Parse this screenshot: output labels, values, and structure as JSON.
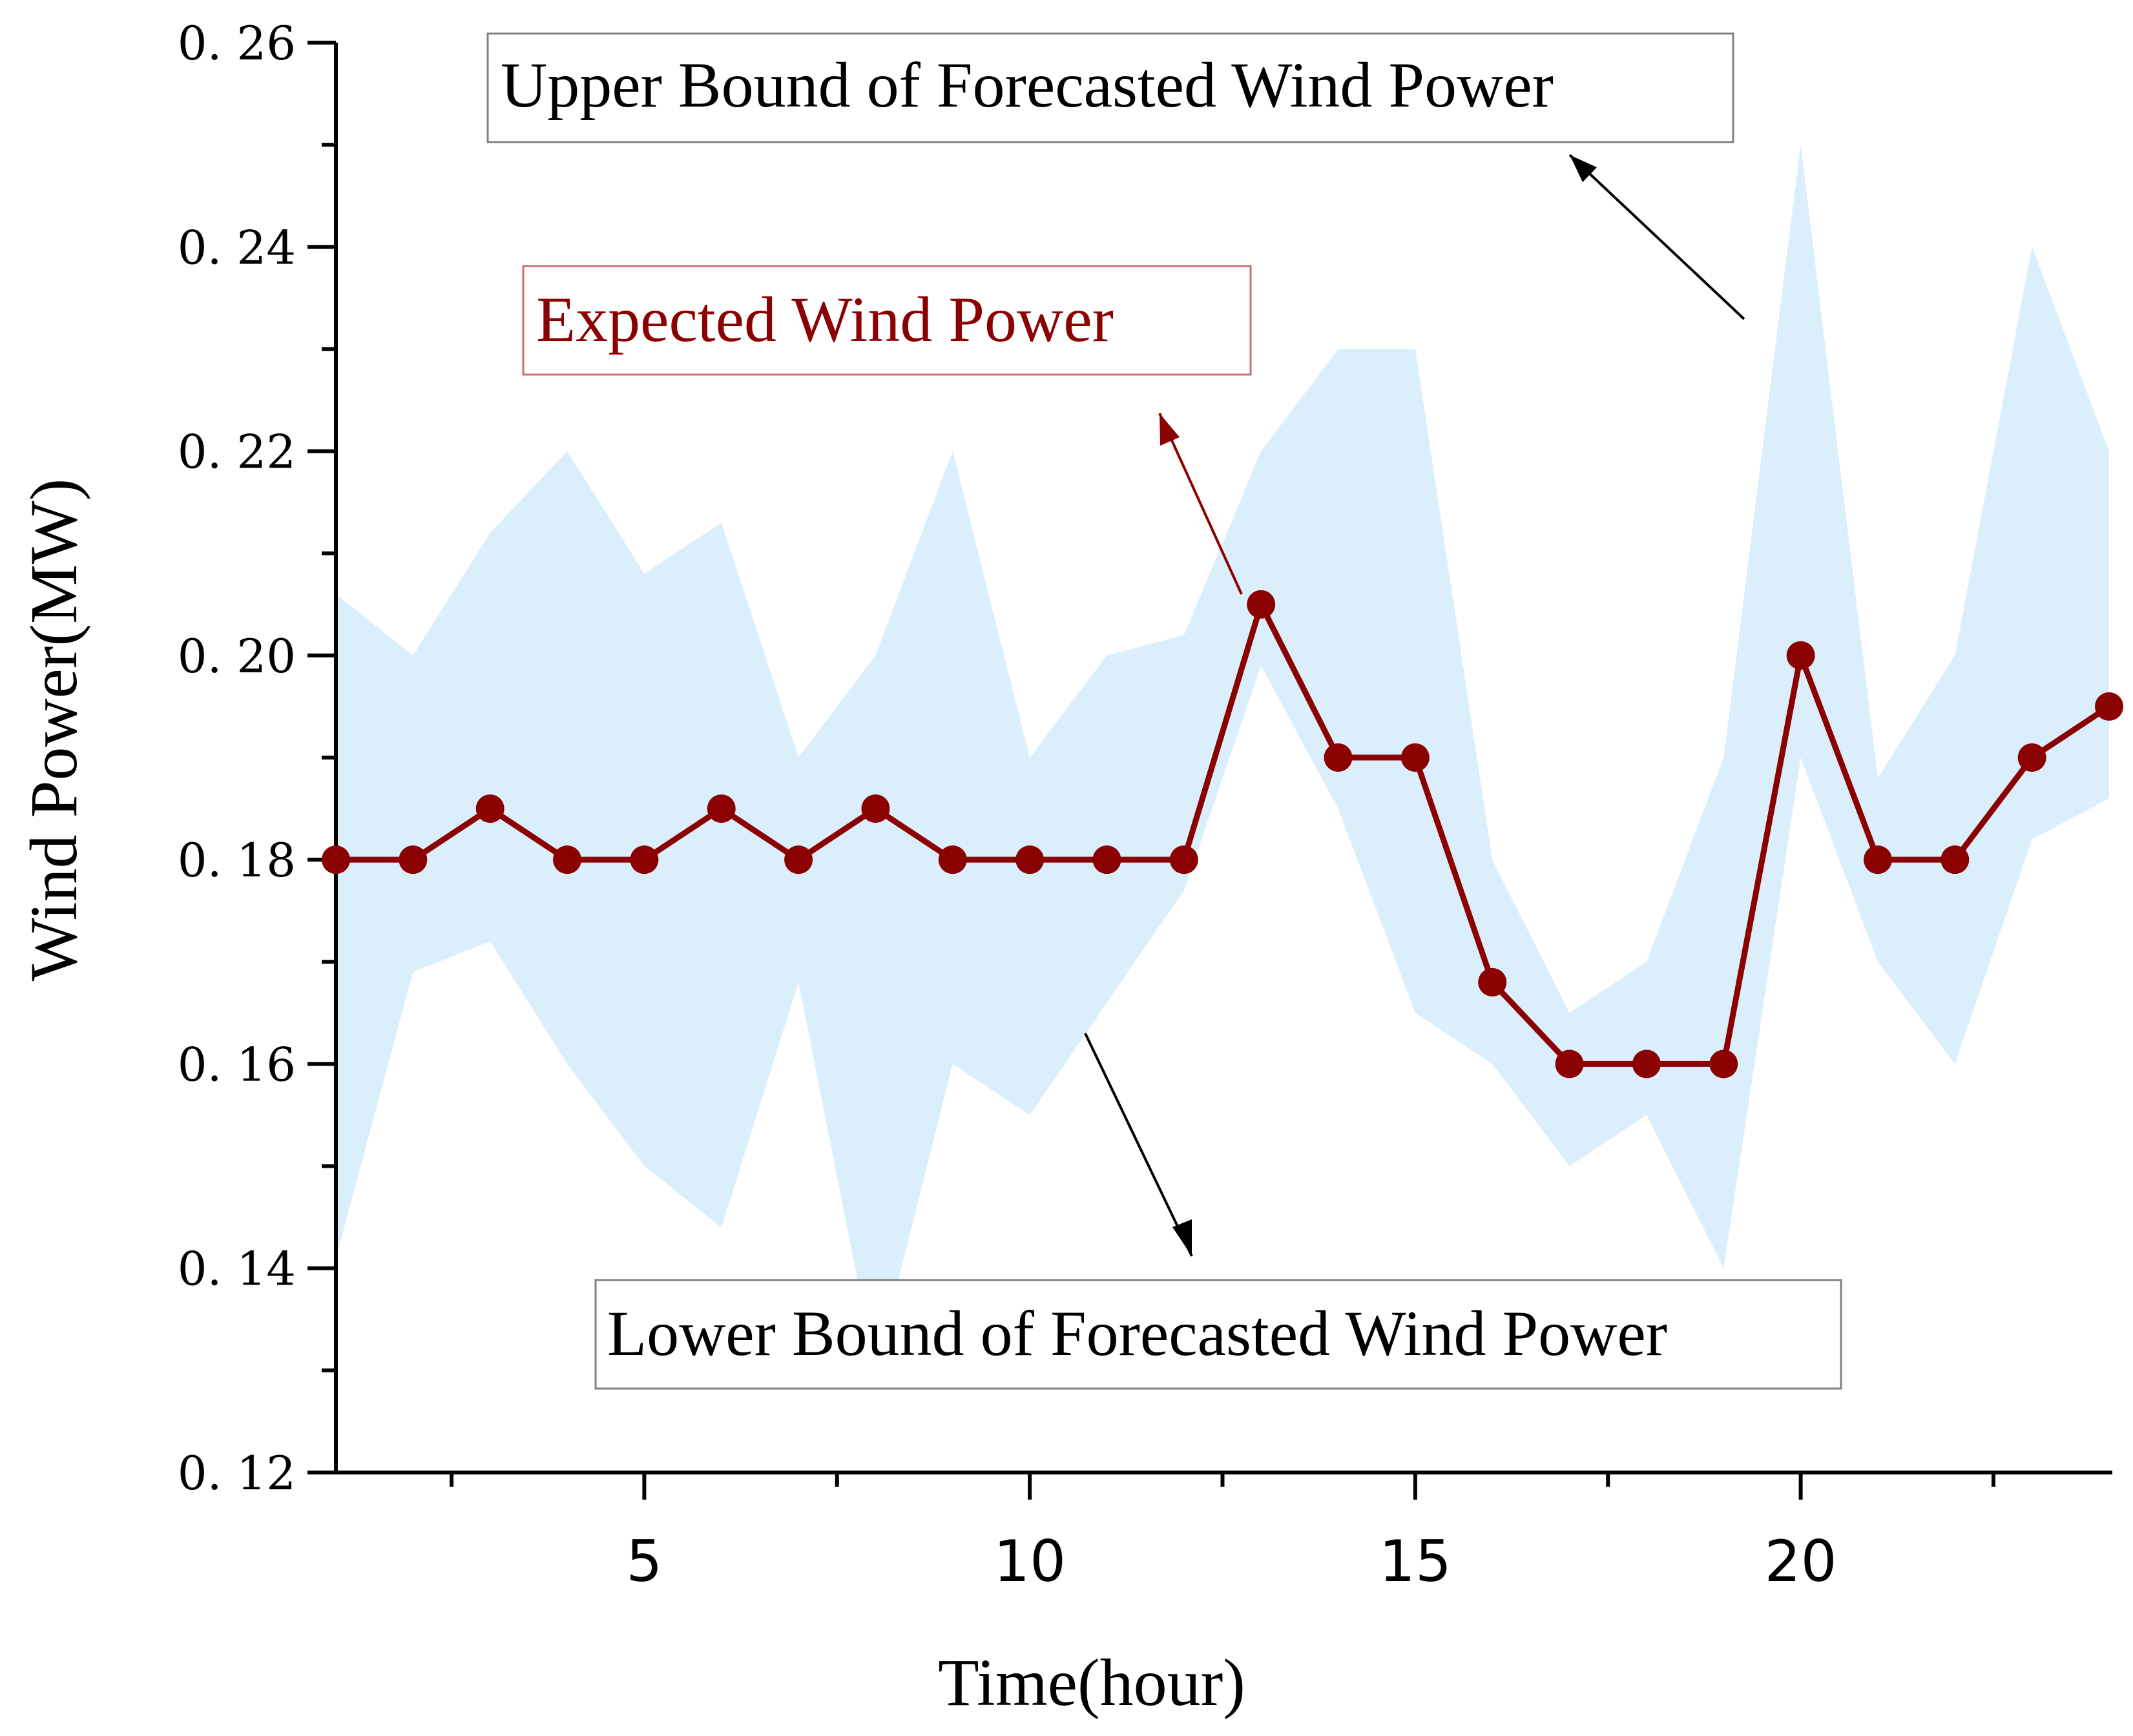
{
  "chart_data": {
    "type": "line",
    "xlabel": "Time(hour)",
    "ylabel": "Wind Power(MW)",
    "xlim": [
      1,
      24
    ],
    "ylim": [
      0.12,
      0.26
    ],
    "x_ticks": [
      5,
      10,
      15,
      20
    ],
    "y_ticks": [
      0.12,
      0.14,
      0.16,
      0.18,
      0.2,
      0.22,
      0.24,
      0.26
    ],
    "y_tick_labels": [
      "0. 12",
      "0. 14",
      "0. 16",
      "0. 18",
      "0. 20",
      "0. 22",
      "0. 24",
      "0. 26"
    ],
    "x": [
      1,
      2,
      3,
      4,
      5,
      6,
      7,
      8,
      9,
      10,
      11,
      12,
      13,
      14,
      15,
      16,
      17,
      18,
      19,
      20,
      21,
      22,
      23,
      24
    ],
    "series": [
      {
        "name": "Expected Wind Power",
        "color": "#8b0000",
        "values": [
          0.18,
          0.18,
          0.185,
          0.18,
          0.18,
          0.185,
          0.18,
          0.185,
          0.18,
          0.18,
          0.18,
          0.18,
          0.205,
          0.19,
          0.19,
          0.168,
          0.16,
          0.16,
          0.16,
          0.2,
          0.18,
          0.18,
          0.19,
          0.195
        ]
      },
      {
        "name": "Upper Bound of Forecasted Wind Power",
        "color": "#dbeefc",
        "values": [
          0.206,
          0.2,
          0.212,
          0.22,
          0.208,
          0.213,
          0.19,
          0.2,
          0.22,
          0.19,
          0.2,
          0.202,
          0.22,
          0.23,
          0.23,
          0.18,
          0.165,
          0.17,
          0.19,
          0.25,
          0.188,
          0.2,
          0.24,
          0.22
        ]
      },
      {
        "name": "Lower Bound of Forecasted Wind Power",
        "color": "#dbeefc",
        "values": [
          0.141,
          0.169,
          0.172,
          0.16,
          0.15,
          0.144,
          0.168,
          0.13,
          0.16,
          0.155,
          0.166,
          0.177,
          0.199,
          0.185,
          0.165,
          0.16,
          0.15,
          0.155,
          0.14,
          0.19,
          0.17,
          0.16,
          0.182,
          0.186
        ]
      }
    ],
    "annotations": [
      {
        "text": "Upper Bound of Forecasted Wind Power",
        "color": "#000000"
      },
      {
        "text": "Expected Wind Power",
        "color": "#8b0000"
      },
      {
        "text": "Lower Bound of Forecasted Wind Power",
        "color": "#000000"
      }
    ],
    "grid": false
  }
}
